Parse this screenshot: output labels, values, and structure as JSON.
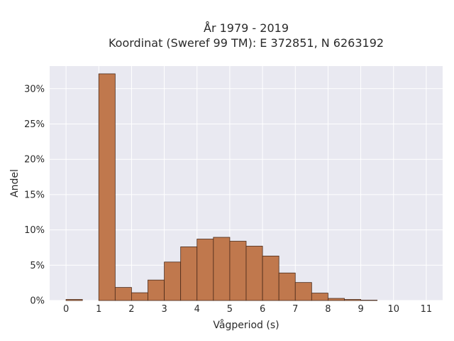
{
  "chart_data": {
    "type": "bar",
    "title_lines": [
      "År 1979 - 2019",
      "Koordinat (Sweref 99 TM): E 372851, N 6263192"
    ],
    "xlabel": "Vågperiod (s)",
    "ylabel": "Andel",
    "xlim": [
      -0.5,
      11.5
    ],
    "ylim": [
      0,
      33.2
    ],
    "x_ticks": [
      0,
      1,
      2,
      3,
      4,
      5,
      6,
      7,
      8,
      9,
      10,
      11
    ],
    "y_ticks": [
      0,
      5,
      10,
      15,
      20,
      25,
      30
    ],
    "y_tick_labels": [
      "0%",
      "5%",
      "10%",
      "15%",
      "20%",
      "25%",
      "30%"
    ],
    "grid": true,
    "bin_width": 0.5,
    "bins": [
      {
        "x0": 0.0,
        "value": 0.15
      },
      {
        "x0": 1.0,
        "value": 32.1
      },
      {
        "x0": 1.5,
        "value": 1.85
      },
      {
        "x0": 2.0,
        "value": 1.1
      },
      {
        "x0": 2.5,
        "value": 2.9
      },
      {
        "x0": 3.0,
        "value": 5.45
      },
      {
        "x0": 3.5,
        "value": 7.6
      },
      {
        "x0": 4.0,
        "value": 8.7
      },
      {
        "x0": 4.5,
        "value": 8.95
      },
      {
        "x0": 5.0,
        "value": 8.4
      },
      {
        "x0": 5.5,
        "value": 7.7
      },
      {
        "x0": 6.0,
        "value": 6.3
      },
      {
        "x0": 6.5,
        "value": 3.9
      },
      {
        "x0": 7.0,
        "value": 2.55
      },
      {
        "x0": 7.5,
        "value": 1.05
      },
      {
        "x0": 8.0,
        "value": 0.3
      },
      {
        "x0": 8.5,
        "value": 0.15
      },
      {
        "x0": 9.0,
        "value": 0.05
      }
    ],
    "bar_color": "#c0784d",
    "bar_edge_color": "#4a2a1a",
    "plot_background": "#e9e9f1"
  }
}
